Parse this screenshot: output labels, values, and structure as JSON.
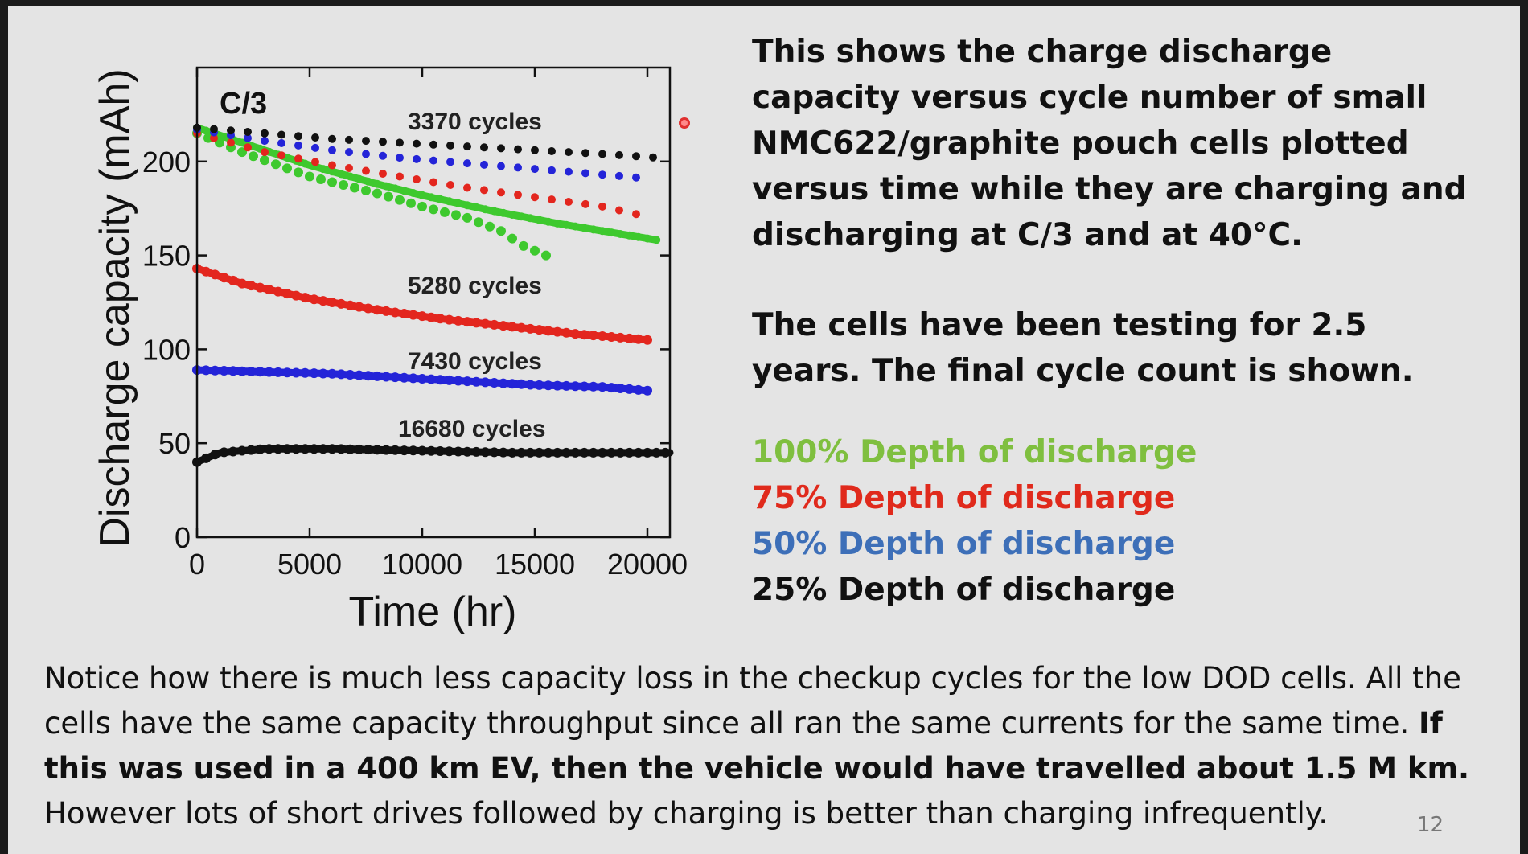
{
  "chart_data": {
    "type": "scatter",
    "panel_label": "C/3",
    "xlabel": "Time (hr)",
    "ylabel": "Discharge capacity (mAh)",
    "xlim": [
      0,
      21000
    ],
    "ylim": [
      0,
      250
    ],
    "xticks": [
      0,
      5000,
      10000,
      15000,
      20000
    ],
    "yticks": [
      0,
      50,
      100,
      150,
      200
    ],
    "grid": false,
    "colors": {
      "green": "#3ec92e",
      "red": "#e3261e",
      "blue": "#2424d8",
      "black": "#111111"
    },
    "series": [
      {
        "name": "100% Depth of discharge",
        "color": "green",
        "group": "3370 cycles",
        "upper": {
          "x": [
            0,
            2000,
            5000,
            8000,
            10000,
            13000,
            16000,
            19000,
            20500
          ],
          "y": [
            218,
            210,
            198,
            188,
            182,
            174,
            167,
            161,
            158
          ]
        },
        "lower": {
          "x": [
            0,
            2000,
            5000,
            8000,
            10000,
            12000,
            13500,
            14500,
            15500
          ],
          "y": [
            215,
            205,
            192,
            183,
            176,
            170,
            163,
            155,
            150
          ]
        }
      },
      {
        "name": "75% Depth of discharge",
        "color": "red",
        "group": "3370 cycles",
        "x": [
          0,
          3000,
          6000,
          9000,
          12000,
          15000,
          18000,
          19500
        ],
        "y": [
          215,
          205,
          198,
          192,
          186,
          181,
          176,
          172
        ]
      },
      {
        "name": "50% Depth of discharge",
        "color": "blue",
        "group": "3370 cycles",
        "x": [
          0,
          3000,
          6000,
          9000,
          12000,
          15000,
          18000,
          20000
        ],
        "y": [
          217,
          211,
          206,
          202,
          199,
          196,
          193,
          191
        ]
      },
      {
        "name": "25% Depth of discharge",
        "color": "black",
        "group": "3370 cycles",
        "x": [
          0,
          3000,
          6000,
          9000,
          12000,
          15000,
          18000,
          20500
        ],
        "y": [
          218,
          215,
          212,
          210,
          208,
          206,
          204,
          202
        ]
      },
      {
        "name": "75% Depth of discharge",
        "color": "red",
        "group": "5280 cycles",
        "x": [
          0,
          2000,
          5000,
          8000,
          11000,
          14000,
          17000,
          20000
        ],
        "y": [
          143,
          135,
          127,
          121,
          116,
          112,
          108,
          105
        ]
      },
      {
        "name": "50% Depth of discharge",
        "color": "blue",
        "group": "7430 cycles",
        "x": [
          0,
          3000,
          6000,
          9000,
          12000,
          15000,
          18000,
          20000
        ],
        "y": [
          89,
          88,
          87,
          85,
          83,
          81,
          80,
          78
        ]
      },
      {
        "name": "25% Depth of discharge",
        "color": "black",
        "group": "16680 cycles",
        "x": [
          0,
          1000,
          3000,
          6000,
          10000,
          14000,
          18000,
          21000
        ],
        "y": [
          40,
          45,
          47,
          47,
          46,
          45,
          45,
          45
        ]
      }
    ],
    "annotations": [
      "3370 cycles",
      "5280 cycles",
      "7430 cycles",
      "16680 cycles"
    ]
  },
  "text": {
    "desc1": "This shows the charge discharge capacity versus cycle number of small NMC622/graphite pouch cells plotted versus time while they are charging and discharging at C/3 and at 40°C.",
    "desc2": "The cells have been testing for 2.5 years.  The final cycle count is shown.",
    "legend": [
      {
        "label": "100% Depth of discharge",
        "color": "#7fbf3f"
      },
      {
        "label": "75% Depth of discharge",
        "color": "#e02a1c"
      },
      {
        "label": "50% Depth of discharge",
        "color": "#3d6fb8"
      },
      {
        "label": "25% Depth of discharge",
        "color": "#111111"
      }
    ],
    "bottom_1": "Notice how there is much less capacity loss in the checkup cycles for the low DOD cells.  All the cells have the same capacity throughput since all ran the same currents for the same time.  ",
    "bottom_bold": "If this was used in a 400 km EV, then the vehicle would have travelled about 1.5 M km.",
    "bottom_2": "However lots of short drives followed by charging is better than charging infrequently.",
    "page_number": "12"
  }
}
